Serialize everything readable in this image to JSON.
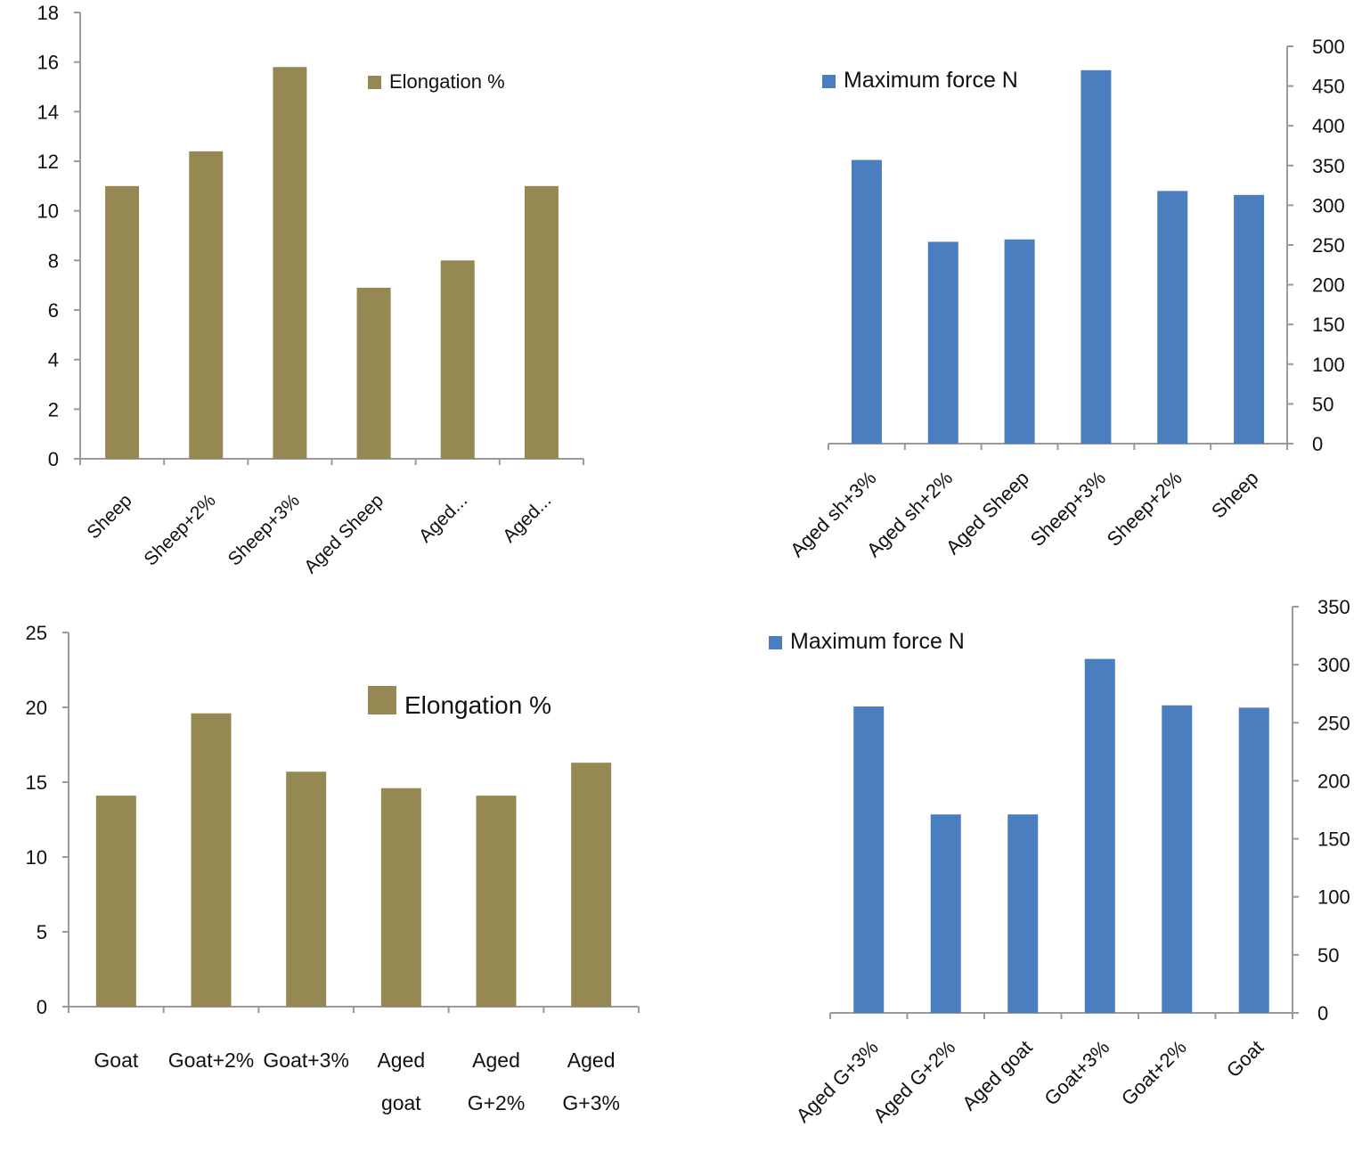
{
  "colors": {
    "olive": "#958852",
    "blue": "#4a7ebf",
    "axis": "#9a9a9a",
    "text": "#111111"
  },
  "chart_data": [
    {
      "type": "bar",
      "categories": [
        "Sheep",
        "Sheep+2%",
        "Sheep+3%",
        "Aged Sheep",
        "Aged...",
        "Aged..."
      ],
      "series": [
        {
          "name": "Elongation %",
          "values": [
            11,
            12.4,
            15.8,
            6.9,
            8,
            11
          ]
        }
      ],
      "ylim": [
        0,
        18
      ],
      "yticks": [
        0,
        2,
        4,
        6,
        8,
        10,
        12,
        14,
        16,
        18
      ],
      "y_axis_side": "left",
      "legend_position": "top-right",
      "grid": false
    },
    {
      "type": "bar",
      "categories": [
        "Aged sh+3%",
        "Aged sh+2%",
        "Aged Sheep",
        "Sheep+3%",
        "Sheep+2%",
        "Sheep"
      ],
      "series": [
        {
          "name": "Maximum force N",
          "values": [
            357,
            254,
            257,
            470,
            318,
            313
          ]
        }
      ],
      "ylim": [
        0,
        500
      ],
      "yticks": [
        0,
        50,
        100,
        150,
        200,
        250,
        300,
        350,
        400,
        450,
        500
      ],
      "y_axis_side": "right",
      "legend_position": "top-left",
      "grid": false
    },
    {
      "type": "bar",
      "categories": [
        "Goat",
        "Goat+2%",
        "Goat+3%",
        "Aged goat",
        "Aged G+2%",
        "Aged G+3%"
      ],
      "series": [
        {
          "name": "Elongation %",
          "values": [
            14.1,
            19.6,
            15.7,
            14.6,
            14.1,
            16.3
          ]
        }
      ],
      "ylim": [
        0,
        25
      ],
      "yticks": [
        0,
        5,
        10,
        15,
        20,
        25
      ],
      "y_axis_side": "left",
      "legend_position": "top-right",
      "grid": false
    },
    {
      "type": "bar",
      "categories": [
        "Aged G+3%",
        "Aged G+2%",
        "Aged goat",
        "Goat+3%",
        "Goat+2%",
        "Goat"
      ],
      "series": [
        {
          "name": "Maximum force N",
          "values": [
            264,
            171,
            171,
            305,
            265,
            263
          ]
        }
      ],
      "ylim": [
        0,
        350
      ],
      "yticks": [
        0,
        50,
        100,
        150,
        200,
        250,
        300,
        350
      ],
      "y_axis_side": "right",
      "legend_position": "top-left",
      "grid": false
    }
  ]
}
